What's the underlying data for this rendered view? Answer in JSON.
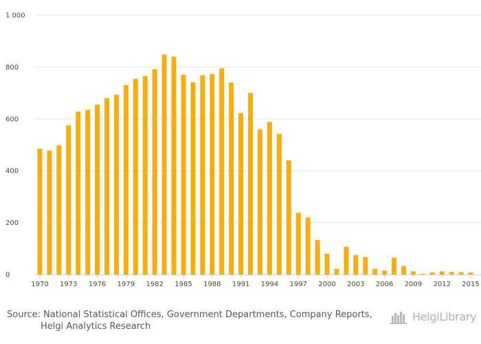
{
  "chart_data": {
    "type": "bar",
    "title": "",
    "xlabel": "",
    "ylabel": "",
    "ylim": [
      0,
      1000
    ],
    "yticks": [
      0,
      200,
      400,
      600,
      800,
      1000
    ],
    "ytick_labels": [
      "0",
      "200",
      "400",
      "600",
      "800",
      "1 000"
    ],
    "categories": [
      "1970",
      "1971",
      "1972",
      "1973",
      "1974",
      "1975",
      "1976",
      "1977",
      "1978",
      "1979",
      "1980",
      "1981",
      "1982",
      "1983",
      "1984",
      "1985",
      "1986",
      "1987",
      "1988",
      "1989",
      "1990",
      "1991",
      "1992",
      "1993",
      "1994",
      "1995",
      "1996",
      "1997",
      "1998",
      "1999",
      "2000",
      "2001",
      "2002",
      "2003",
      "2004",
      "2005",
      "2006",
      "2007",
      "2008",
      "2009",
      "2010",
      "2011",
      "2012",
      "2013",
      "2014",
      "2015"
    ],
    "xtick_labels": [
      "1970",
      "1973",
      "1976",
      "1979",
      "1982",
      "1985",
      "1988",
      "1991",
      "1994",
      "1997",
      "2000",
      "2003",
      "2006",
      "2009",
      "2012",
      "2015"
    ],
    "values": [
      485,
      478,
      498,
      575,
      628,
      635,
      655,
      680,
      693,
      730,
      755,
      765,
      792,
      848,
      840,
      770,
      741,
      768,
      773,
      795,
      740,
      622,
      700,
      560,
      588,
      542,
      440,
      238,
      220,
      133,
      80,
      22,
      107,
      75,
      67,
      22,
      15,
      65,
      33,
      12,
      3,
      8,
      12,
      10,
      9,
      8
    ],
    "bar_color": "#f6ae0f",
    "grid": true
  },
  "footer": {
    "source_line1": "Source: National Statistical Offices, Government Departments, Company Reports,",
    "source_line2": "Helgi Analytics Research",
    "logo_text": "HelgiLibrary"
  }
}
